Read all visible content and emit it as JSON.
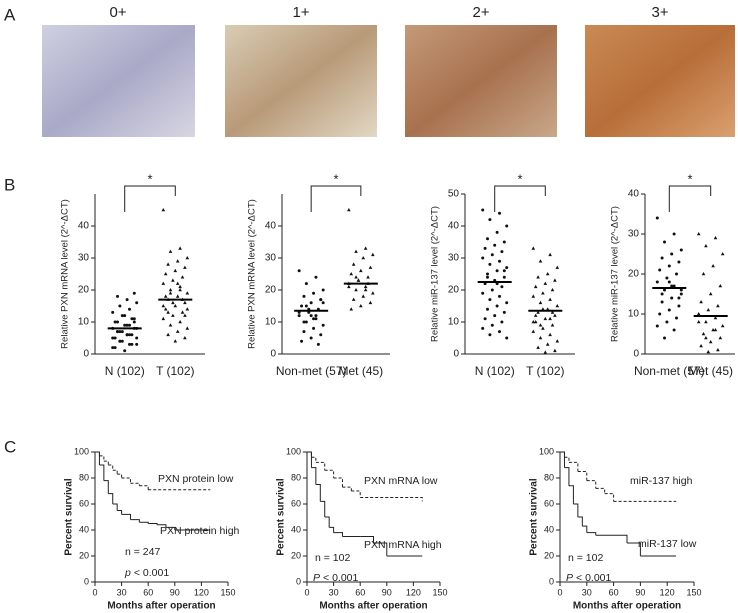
{
  "panel_labels": [
    "A",
    "B",
    "C"
  ],
  "images": [
    {
      "label": "0+"
    },
    {
      "label": "1+"
    },
    {
      "label": "2+"
    },
    {
      "label": "3+"
    }
  ],
  "chart_data": [
    {
      "type": "dot",
      "ylabel": "Relative PXN mRNA level (2^-ΔCT)",
      "categories": [
        "N (102)",
        "T (102)"
      ],
      "groups": [
        [
          2,
          3,
          4,
          5,
          6,
          7,
          8,
          9,
          10,
          11,
          12,
          13,
          14,
          15,
          16,
          17,
          18,
          19,
          1,
          2,
          3,
          4,
          5,
          6,
          7,
          8,
          9,
          10,
          11,
          12,
          5,
          6,
          7,
          8,
          9,
          4,
          3,
          6,
          7,
          10
        ],
        [
          45,
          33,
          32,
          30,
          29,
          28,
          27,
          26,
          25,
          24,
          23,
          22,
          21,
          20,
          19,
          18,
          17,
          16,
          15,
          14,
          13,
          12,
          11,
          10,
          9,
          8,
          7,
          6,
          5,
          4,
          18,
          17,
          16,
          15,
          20,
          19,
          14,
          22,
          13,
          12
        ]
      ],
      "means": [
        8,
        17
      ],
      "significance": "*",
      "ylim": [
        0,
        50
      ],
      "yticks": [
        0,
        10,
        20,
        30,
        40
      ]
    },
    {
      "type": "dot",
      "ylabel": "Relative PXN mRNA level (2^-ΔCT)",
      "categories": [
        "Non-met (57)",
        "Met (45)"
      ],
      "groups": [
        [
          26,
          24,
          22,
          20,
          19,
          18,
          17,
          16,
          15,
          14,
          13,
          12,
          11,
          10,
          9,
          8,
          7,
          6,
          5,
          4,
          3,
          14,
          13,
          12,
          15,
          16,
          11,
          10,
          17,
          12
        ],
        [
          45,
          33,
          32,
          31,
          30,
          28,
          27,
          26,
          25,
          24,
          23,
          22,
          21,
          20,
          19,
          18,
          17,
          16,
          15,
          14,
          22,
          23,
          21,
          20,
          24
        ]
      ],
      "means": [
        13.5,
        22
      ],
      "significance": "*",
      "ylim": [
        0,
        50
      ],
      "yticks": [
        0,
        10,
        20,
        30,
        40
      ]
    },
    {
      "type": "dot",
      "ylabel": "Relative miR-137 level (2^-ΔCT)",
      "categories": [
        "N (102)",
        "T (102)"
      ],
      "groups": [
        [
          45,
          44,
          42,
          40,
          38,
          36,
          35,
          34,
          33,
          32,
          31,
          30,
          29,
          28,
          27,
          26,
          25,
          24,
          23,
          22,
          21,
          20,
          19,
          18,
          17,
          16,
          15,
          14,
          13,
          12,
          11,
          10,
          9,
          8,
          7,
          6,
          5,
          22,
          24,
          26
        ],
        [
          33,
          31,
          29,
          27,
          25,
          24,
          23,
          22,
          21,
          20,
          19,
          18,
          17,
          16,
          15,
          14,
          13,
          12,
          11,
          10,
          9,
          8,
          7,
          6,
          5,
          4,
          3,
          2,
          1,
          0.5,
          12,
          13,
          14,
          10,
          11,
          9
        ]
      ],
      "means": [
        22.5,
        13.5
      ],
      "significance": "*",
      "ylim": [
        0,
        50
      ],
      "yticks": [
        0,
        10,
        20,
        30,
        40,
        50
      ]
    },
    {
      "type": "dot",
      "ylabel": "Relative miR-137 level (2^-ΔCT)",
      "categories": [
        "Non-met (57)",
        "Met (45)"
      ],
      "groups": [
        [
          34,
          30,
          28,
          26,
          25,
          24,
          23,
          22,
          21,
          20,
          19,
          18,
          17,
          16,
          15,
          14,
          13,
          12,
          11,
          10,
          9,
          8,
          7,
          6,
          4,
          16,
          17,
          15,
          14,
          18
        ],
        [
          30,
          29,
          27,
          25,
          22,
          20,
          17,
          15,
          13,
          12,
          11,
          10,
          9,
          8,
          7,
          6,
          5,
          4,
          3,
          2,
          1,
          0.5,
          8,
          6,
          4
        ]
      ],
      "means": [
        16.5,
        9.5
      ],
      "significance": "*",
      "ylim": [
        0,
        40
      ],
      "yticks": [
        0,
        10,
        20,
        30,
        40
      ]
    },
    {
      "type": "km",
      "ylabel": "Percent survival",
      "xlabel": "Months after operation",
      "xlim": [
        0,
        150
      ],
      "xticks": [
        0,
        30,
        60,
        90,
        120,
        150
      ],
      "ylim": [
        0,
        100
      ],
      "yticks": [
        0,
        20,
        40,
        60,
        80,
        100
      ],
      "series": [
        {
          "name": "PXN protein low",
          "dashed": true,
          "x": [
            0,
            5,
            10,
            15,
            20,
            25,
            30,
            40,
            50,
            60,
            130
          ],
          "values": [
            100,
            97,
            93,
            90,
            86,
            83,
            80,
            76,
            74,
            71,
            71
          ]
        },
        {
          "name": "PXN protein high",
          "dashed": false,
          "x": [
            0,
            5,
            10,
            15,
            20,
            25,
            30,
            40,
            50,
            60,
            70,
            80,
            90,
            130
          ],
          "values": [
            100,
            90,
            78,
            68,
            60,
            55,
            52,
            48,
            46,
            45,
            44,
            42,
            40,
            40
          ]
        }
      ],
      "n_label": "n = 247",
      "p_symbol": "p",
      "p_text": "< 0.001"
    },
    {
      "type": "km",
      "ylabel": "Percent survival",
      "xlabel": "Months after operation",
      "xlim": [
        0,
        150
      ],
      "xticks": [
        0,
        30,
        60,
        90,
        120,
        150
      ],
      "ylim": [
        0,
        100
      ],
      "yticks": [
        0,
        20,
        40,
        60,
        80,
        100
      ],
      "series": [
        {
          "name": "PXN mRNA low",
          "dashed": true,
          "x": [
            0,
            5,
            10,
            20,
            30,
            40,
            50,
            60,
            130
          ],
          "values": [
            100,
            96,
            92,
            86,
            80,
            73,
            70,
            65,
            62
          ]
        },
        {
          "name": "PXN mRNA high",
          "dashed": false,
          "x": [
            0,
            5,
            10,
            15,
            20,
            25,
            30,
            40,
            60,
            75,
            90,
            130
          ],
          "values": [
            100,
            88,
            75,
            62,
            50,
            42,
            38,
            35,
            35,
            30,
            20,
            20
          ]
        }
      ],
      "n_label": "n = 102",
      "p_symbol": "P",
      "p_text": "< 0.001"
    },
    {
      "type": "km",
      "ylabel": "Percent survival",
      "xlabel": "Months after operation",
      "xlim": [
        0,
        150
      ],
      "xticks": [
        0,
        30,
        60,
        90,
        120,
        150
      ],
      "ylim": [
        0,
        100
      ],
      "yticks": [
        0,
        20,
        40,
        60,
        80,
        100
      ],
      "series": [
        {
          "name": "miR-137 high",
          "dashed": true,
          "x": [
            0,
            5,
            10,
            20,
            30,
            40,
            50,
            60,
            130
          ],
          "values": [
            100,
            96,
            92,
            85,
            78,
            72,
            68,
            62,
            62
          ]
        },
        {
          "name": "miR-137 low",
          "dashed": false,
          "x": [
            0,
            5,
            10,
            15,
            20,
            25,
            30,
            40,
            60,
            75,
            90,
            130
          ],
          "values": [
            100,
            88,
            74,
            60,
            50,
            43,
            38,
            36,
            36,
            30,
            20,
            20
          ]
        }
      ],
      "n_label": "n = 102",
      "p_symbol": "P",
      "p_text": "< 0.001"
    }
  ]
}
